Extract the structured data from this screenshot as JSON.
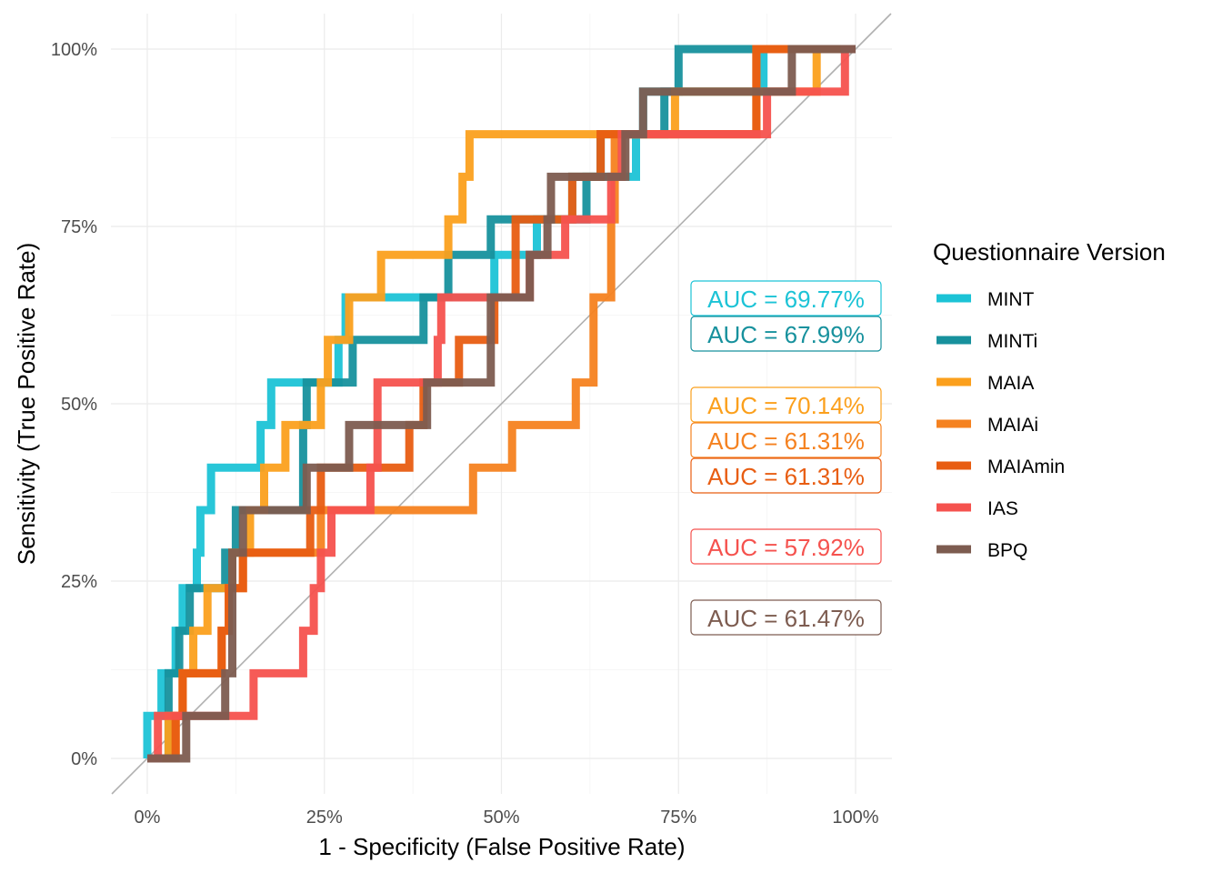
{
  "chart_data": {
    "type": "line",
    "xlabel": "1 - Specificity (False Positive Rate)",
    "ylabel": "Sensitivity (True Positive Rate)",
    "xlim": [
      -0.05,
      1.05
    ],
    "ylim": [
      -0.1,
      1.05
    ],
    "x_ticks": [
      0,
      0.25,
      0.5,
      0.75,
      1
    ],
    "x_tick_labels": [
      "0%",
      "25%",
      "50%",
      "75%",
      "100%"
    ],
    "y_ticks": [
      0,
      0.25,
      0.5,
      0.75,
      1
    ],
    "y_tick_labels": [
      "0%",
      "25%",
      "50%",
      "75%",
      "100%"
    ],
    "grid": true,
    "reference_line": "diagonal",
    "legend": {
      "title": "Questionnaire Version",
      "position": "right",
      "entries": [
        "MINT",
        "MINTi",
        "MAIA",
        "MAIAi",
        "MAIAmin",
        "IAS",
        "BPQ"
      ]
    },
    "series": [
      {
        "name": "MINT",
        "color": "#1cc3d6",
        "auc_label": "AUC = 69.77%",
        "points": [
          [
            0.0,
            0.0
          ],
          [
            0.0,
            0.06
          ],
          [
            0.02,
            0.06
          ],
          [
            0.02,
            0.12
          ],
          [
            0.04,
            0.12
          ],
          [
            0.04,
            0.18
          ],
          [
            0.05,
            0.18
          ],
          [
            0.05,
            0.24
          ],
          [
            0.07,
            0.24
          ],
          [
            0.07,
            0.29
          ],
          [
            0.075,
            0.29
          ],
          [
            0.075,
            0.35
          ],
          [
            0.09,
            0.35
          ],
          [
            0.09,
            0.41
          ],
          [
            0.16,
            0.41
          ],
          [
            0.16,
            0.47
          ],
          [
            0.175,
            0.47
          ],
          [
            0.175,
            0.53
          ],
          [
            0.27,
            0.53
          ],
          [
            0.27,
            0.59
          ],
          [
            0.28,
            0.59
          ],
          [
            0.28,
            0.65
          ],
          [
            0.49,
            0.65
          ],
          [
            0.49,
            0.71
          ],
          [
            0.55,
            0.71
          ],
          [
            0.55,
            0.76
          ],
          [
            0.6,
            0.76
          ],
          [
            0.6,
            0.82
          ],
          [
            0.69,
            0.82
          ],
          [
            0.69,
            0.88
          ],
          [
            0.7,
            0.88
          ],
          [
            0.7,
            0.94
          ],
          [
            0.87,
            0.94
          ],
          [
            0.87,
            1.0
          ],
          [
            1.0,
            1.0
          ]
        ]
      },
      {
        "name": "MINTi",
        "color": "#17919d",
        "auc_label": "AUC = 67.99%",
        "points": [
          [
            0.0,
            0.0
          ],
          [
            0.03,
            0.0
          ],
          [
            0.03,
            0.06
          ],
          [
            0.03,
            0.12
          ],
          [
            0.045,
            0.12
          ],
          [
            0.045,
            0.18
          ],
          [
            0.06,
            0.18
          ],
          [
            0.06,
            0.24
          ],
          [
            0.11,
            0.24
          ],
          [
            0.11,
            0.29
          ],
          [
            0.125,
            0.29
          ],
          [
            0.125,
            0.35
          ],
          [
            0.22,
            0.35
          ],
          [
            0.22,
            0.47
          ],
          [
            0.225,
            0.47
          ],
          [
            0.225,
            0.53
          ],
          [
            0.29,
            0.53
          ],
          [
            0.29,
            0.59
          ],
          [
            0.39,
            0.59
          ],
          [
            0.39,
            0.65
          ],
          [
            0.425,
            0.65
          ],
          [
            0.425,
            0.71
          ],
          [
            0.485,
            0.71
          ],
          [
            0.485,
            0.76
          ],
          [
            0.62,
            0.76
          ],
          [
            0.62,
            0.82
          ],
          [
            0.64,
            0.82
          ],
          [
            0.64,
            0.88
          ],
          [
            0.73,
            0.88
          ],
          [
            0.73,
            0.94
          ],
          [
            0.75,
            0.94
          ],
          [
            0.75,
            1.0
          ],
          [
            1.0,
            1.0
          ]
        ]
      },
      {
        "name": "MAIA",
        "color": "#fba01d",
        "auc_label": "AUC = 70.14%",
        "points": [
          [
            0.0,
            0.0
          ],
          [
            0.03,
            0.0
          ],
          [
            0.03,
            0.06
          ],
          [
            0.05,
            0.06
          ],
          [
            0.05,
            0.12
          ],
          [
            0.065,
            0.12
          ],
          [
            0.065,
            0.18
          ],
          [
            0.085,
            0.18
          ],
          [
            0.085,
            0.24
          ],
          [
            0.12,
            0.24
          ],
          [
            0.12,
            0.29
          ],
          [
            0.145,
            0.29
          ],
          [
            0.145,
            0.35
          ],
          [
            0.165,
            0.35
          ],
          [
            0.165,
            0.41
          ],
          [
            0.195,
            0.41
          ],
          [
            0.195,
            0.47
          ],
          [
            0.245,
            0.47
          ],
          [
            0.245,
            0.53
          ],
          [
            0.255,
            0.53
          ],
          [
            0.255,
            0.59
          ],
          [
            0.285,
            0.59
          ],
          [
            0.285,
            0.65
          ],
          [
            0.33,
            0.65
          ],
          [
            0.33,
            0.71
          ],
          [
            0.425,
            0.71
          ],
          [
            0.425,
            0.76
          ],
          [
            0.445,
            0.76
          ],
          [
            0.445,
            0.82
          ],
          [
            0.455,
            0.82
          ],
          [
            0.455,
            0.88
          ],
          [
            0.745,
            0.88
          ],
          [
            0.745,
            0.94
          ],
          [
            0.945,
            0.94
          ],
          [
            0.945,
            1.0
          ],
          [
            1.0,
            1.0
          ]
        ]
      },
      {
        "name": "MAIAi",
        "color": "#f58220",
        "auc_label": "AUC = 61.31%",
        "points": [
          [
            0.0,
            0.0
          ],
          [
            0.04,
            0.0
          ],
          [
            0.04,
            0.06
          ],
          [
            0.05,
            0.06
          ],
          [
            0.05,
            0.12
          ],
          [
            0.105,
            0.12
          ],
          [
            0.105,
            0.18
          ],
          [
            0.115,
            0.18
          ],
          [
            0.115,
            0.24
          ],
          [
            0.135,
            0.24
          ],
          [
            0.135,
            0.29
          ],
          [
            0.245,
            0.29
          ],
          [
            0.245,
            0.35
          ],
          [
            0.46,
            0.35
          ],
          [
            0.46,
            0.41
          ],
          [
            0.515,
            0.41
          ],
          [
            0.515,
            0.47
          ],
          [
            0.605,
            0.47
          ],
          [
            0.605,
            0.53
          ],
          [
            0.63,
            0.53
          ],
          [
            0.63,
            0.65
          ],
          [
            0.655,
            0.65
          ],
          [
            0.655,
            0.76
          ],
          [
            0.66,
            0.76
          ],
          [
            0.66,
            0.88
          ],
          [
            0.86,
            0.88
          ],
          [
            0.86,
            1.0
          ],
          [
            1.0,
            1.0
          ]
        ]
      },
      {
        "name": "MAIAmin",
        "color": "#e85d12",
        "auc_label": "AUC = 61.31%",
        "points": [
          [
            0.0,
            0.0
          ],
          [
            0.04,
            0.0
          ],
          [
            0.04,
            0.06
          ],
          [
            0.05,
            0.06
          ],
          [
            0.05,
            0.12
          ],
          [
            0.105,
            0.12
          ],
          [
            0.105,
            0.18
          ],
          [
            0.115,
            0.18
          ],
          [
            0.115,
            0.24
          ],
          [
            0.135,
            0.24
          ],
          [
            0.135,
            0.29
          ],
          [
            0.23,
            0.29
          ],
          [
            0.23,
            0.35
          ],
          [
            0.245,
            0.35
          ],
          [
            0.245,
            0.41
          ],
          [
            0.37,
            0.41
          ],
          [
            0.37,
            0.47
          ],
          [
            0.39,
            0.47
          ],
          [
            0.39,
            0.53
          ],
          [
            0.44,
            0.53
          ],
          [
            0.44,
            0.59
          ],
          [
            0.49,
            0.59
          ],
          [
            0.49,
            0.65
          ],
          [
            0.52,
            0.65
          ],
          [
            0.52,
            0.71
          ],
          [
            0.52,
            0.76
          ],
          [
            0.6,
            0.76
          ],
          [
            0.6,
            0.82
          ],
          [
            0.64,
            0.82
          ],
          [
            0.64,
            0.88
          ],
          [
            0.86,
            0.88
          ],
          [
            0.86,
            1.0
          ],
          [
            1.0,
            1.0
          ]
        ]
      },
      {
        "name": "IAS",
        "color": "#f5524e",
        "auc_label": "AUC = 57.92%",
        "points": [
          [
            0.0,
            0.0
          ],
          [
            0.015,
            0.0
          ],
          [
            0.015,
            0.06
          ],
          [
            0.15,
            0.06
          ],
          [
            0.15,
            0.12
          ],
          [
            0.22,
            0.12
          ],
          [
            0.22,
            0.18
          ],
          [
            0.235,
            0.18
          ],
          [
            0.235,
            0.24
          ],
          [
            0.245,
            0.24
          ],
          [
            0.245,
            0.29
          ],
          [
            0.26,
            0.29
          ],
          [
            0.26,
            0.35
          ],
          [
            0.315,
            0.35
          ],
          [
            0.315,
            0.41
          ],
          [
            0.325,
            0.41
          ],
          [
            0.325,
            0.53
          ],
          [
            0.41,
            0.53
          ],
          [
            0.41,
            0.59
          ],
          [
            0.415,
            0.59
          ],
          [
            0.415,
            0.65
          ],
          [
            0.54,
            0.65
          ],
          [
            0.54,
            0.71
          ],
          [
            0.59,
            0.71
          ],
          [
            0.59,
            0.76
          ],
          [
            0.655,
            0.76
          ],
          [
            0.655,
            0.82
          ],
          [
            0.67,
            0.82
          ],
          [
            0.67,
            0.88
          ],
          [
            0.875,
            0.88
          ],
          [
            0.875,
            0.94
          ],
          [
            0.985,
            0.94
          ],
          [
            0.985,
            1.0
          ],
          [
            1.0,
            1.0
          ]
        ]
      },
      {
        "name": "BPQ",
        "color": "#7d5c50",
        "auc_label": "AUC = 61.47%",
        "points": [
          [
            0.0,
            0.0
          ],
          [
            0.055,
            0.0
          ],
          [
            0.055,
            0.06
          ],
          [
            0.11,
            0.06
          ],
          [
            0.11,
            0.12
          ],
          [
            0.12,
            0.12
          ],
          [
            0.12,
            0.29
          ],
          [
            0.135,
            0.29
          ],
          [
            0.135,
            0.35
          ],
          [
            0.225,
            0.35
          ],
          [
            0.225,
            0.41
          ],
          [
            0.285,
            0.41
          ],
          [
            0.285,
            0.47
          ],
          [
            0.395,
            0.47
          ],
          [
            0.395,
            0.53
          ],
          [
            0.485,
            0.53
          ],
          [
            0.485,
            0.65
          ],
          [
            0.54,
            0.65
          ],
          [
            0.54,
            0.71
          ],
          [
            0.565,
            0.71
          ],
          [
            0.565,
            0.76
          ],
          [
            0.57,
            0.76
          ],
          [
            0.57,
            0.82
          ],
          [
            0.585,
            0.82
          ],
          [
            0.585,
            0.82
          ],
          [
            0.675,
            0.82
          ],
          [
            0.675,
            0.88
          ],
          [
            0.7,
            0.88
          ],
          [
            0.7,
            0.94
          ],
          [
            0.91,
            0.94
          ],
          [
            0.91,
            1.0
          ],
          [
            1.0,
            1.0
          ]
        ]
      }
    ]
  }
}
